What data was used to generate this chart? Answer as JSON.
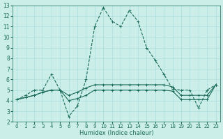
{
  "xlabel": "Humidex (Indice chaleur)",
  "background_color": "#cceee8",
  "grid_color": "#aadddd",
  "line_color": "#1a6b5a",
  "xlim": [
    -0.5,
    23.5
  ],
  "ylim": [
    2,
    13
  ],
  "xticks": [
    0,
    1,
    2,
    3,
    4,
    5,
    6,
    7,
    8,
    9,
    10,
    11,
    12,
    13,
    14,
    15,
    16,
    17,
    18,
    19,
    20,
    21,
    22,
    23
  ],
  "yticks": [
    2,
    3,
    4,
    5,
    6,
    7,
    8,
    9,
    10,
    11,
    12,
    13
  ],
  "series1_x": [
    0,
    1,
    2,
    3,
    4,
    5,
    6,
    7,
    8,
    9,
    10,
    11,
    12,
    13,
    14,
    15,
    16,
    17,
    18,
    19,
    20,
    21,
    22,
    23
  ],
  "series1_y": [
    4.1,
    4.3,
    4.5,
    4.8,
    5.0,
    5.0,
    4.0,
    4.2,
    4.5,
    5.0,
    5.0,
    5.0,
    5.0,
    5.0,
    5.0,
    5.0,
    5.0,
    5.0,
    4.9,
    4.1,
    4.1,
    4.1,
    4.1,
    5.5
  ],
  "series2_x": [
    0,
    1,
    2,
    3,
    4,
    5,
    6,
    7,
    8,
    9,
    10,
    11,
    12,
    13,
    14,
    15,
    16,
    17,
    18,
    19,
    20,
    21,
    22,
    23
  ],
  "series2_y": [
    4.1,
    4.3,
    4.5,
    4.8,
    5.0,
    5.0,
    4.5,
    4.8,
    5.2,
    5.5,
    5.5,
    5.5,
    5.5,
    5.5,
    5.5,
    5.5,
    5.5,
    5.5,
    5.3,
    4.5,
    4.5,
    4.5,
    4.5,
    5.5
  ],
  "series3_x": [
    0,
    1,
    2,
    3,
    4,
    5,
    6,
    7,
    8,
    9,
    10,
    11,
    12,
    13,
    14,
    15,
    16,
    17,
    18,
    19,
    20,
    21,
    22,
    23
  ],
  "series3_y": [
    4.1,
    4.5,
    5.0,
    5.0,
    6.5,
    5.0,
    2.5,
    3.5,
    6.0,
    11.0,
    12.8,
    11.5,
    11.0,
    12.5,
    11.5,
    9.0,
    7.8,
    6.5,
    5.1,
    5.0,
    5.0,
    3.3,
    5.0,
    5.5
  ]
}
